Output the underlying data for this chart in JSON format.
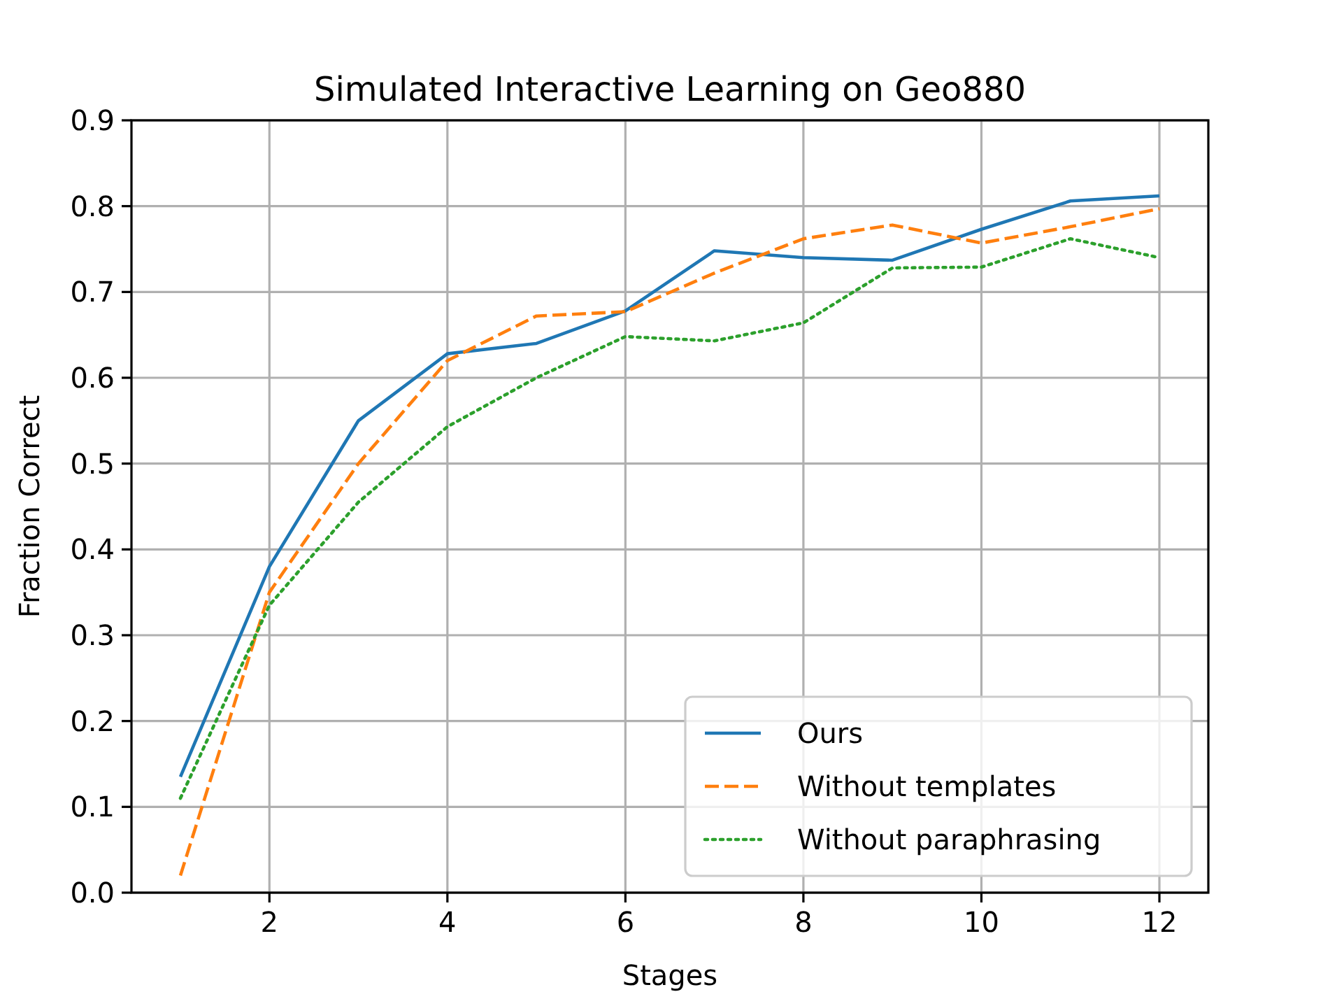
{
  "chart_data": {
    "type": "line",
    "title": "Simulated Interactive Learning on Geo880",
    "xlabel": "Stages",
    "ylabel": "Fraction Correct",
    "x": [
      1,
      2,
      3,
      4,
      5,
      6,
      7,
      8,
      9,
      10,
      11,
      12
    ],
    "series": [
      {
        "name": "Ours",
        "color": "#1f77b4",
        "line_style": "solid",
        "values": [
          0.135,
          0.38,
          0.55,
          0.628,
          0.64,
          0.678,
          0.748,
          0.74,
          0.737,
          0.773,
          0.806,
          0.812
        ]
      },
      {
        "name": "Without templates",
        "color": "#ff7f0e",
        "line_style": "dashed",
        "values": [
          0.02,
          0.35,
          0.5,
          0.62,
          0.672,
          0.677,
          0.722,
          0.762,
          0.778,
          0.757,
          0.776,
          0.797
        ]
      },
      {
        "name": "Without paraphrasing",
        "color": "#2ca02c",
        "line_style": "dotted",
        "values": [
          0.11,
          0.335,
          0.455,
          0.543,
          0.6,
          0.648,
          0.643,
          0.664,
          0.728,
          0.729,
          0.762,
          0.74
        ]
      }
    ],
    "xlim": [
      0.45,
      12.55
    ],
    "ylim": [
      0,
      0.9
    ],
    "xticks": [
      2,
      4,
      6,
      8,
      10,
      12
    ],
    "yticks": [
      {
        "value": 0,
        "label": "0.0"
      },
      {
        "value": 0.1,
        "label": "0.1"
      },
      {
        "value": 0.2,
        "label": "0.2"
      },
      {
        "value": 0.3,
        "label": "0.3"
      },
      {
        "value": 0.4,
        "label": "0.4"
      },
      {
        "value": 0.5,
        "label": "0.5"
      },
      {
        "value": 0.6,
        "label": "0.6"
      },
      {
        "value": 0.7,
        "label": "0.7"
      },
      {
        "value": 0.8,
        "label": "0.8"
      },
      {
        "value": 0.9,
        "label": "0.9"
      }
    ],
    "grid": true,
    "legend": "bottom right",
    "marker": "none"
  }
}
